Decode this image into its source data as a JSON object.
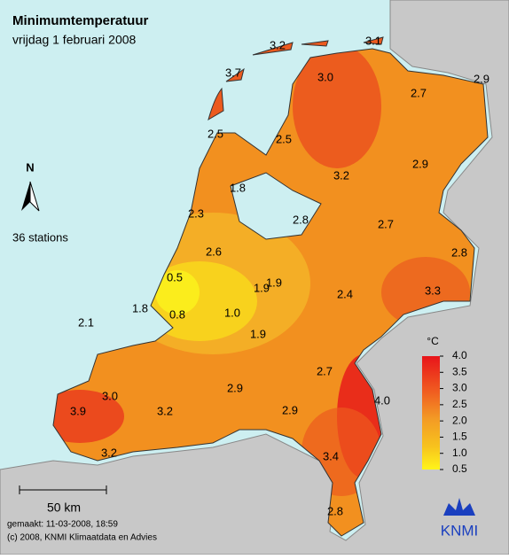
{
  "header": {
    "title": "Minimumtemperatuur",
    "subtitle": "vrijdag 1 februari 2008"
  },
  "north": "N",
  "stations_count": "36 stations",
  "stations": [
    "3.2",
    "3.1",
    "3.7",
    "3.0",
    "2.7",
    "2.9",
    "2.5",
    "2.5",
    "2.9",
    "3.2",
    "1.8",
    "2.3",
    "2.8",
    "2.7",
    "2.8",
    "2.6",
    "0.5",
    "1.9",
    "1.9",
    "2.4",
    "3.3",
    "1.8",
    "0.8",
    "1.0",
    "2.1",
    "1.9",
    "2.7",
    "4.0",
    "3.0",
    "2.9",
    "2.9",
    "3.9",
    "3.2",
    "3.4",
    "3.2",
    "2.8"
  ],
  "legend": {
    "unit": "°C",
    "ticks": [
      "4.0",
      "3.5",
      "3.0",
      "2.5",
      "2.0",
      "1.5",
      "1.0",
      "0.5"
    ]
  },
  "scale": "50 km",
  "footer": {
    "made": "gemaakt: 11-03-2008, 18:59",
    "copyright": "(c) 2008, KNMI Klimaatdata en Advies"
  },
  "logo": "KNMI"
}
